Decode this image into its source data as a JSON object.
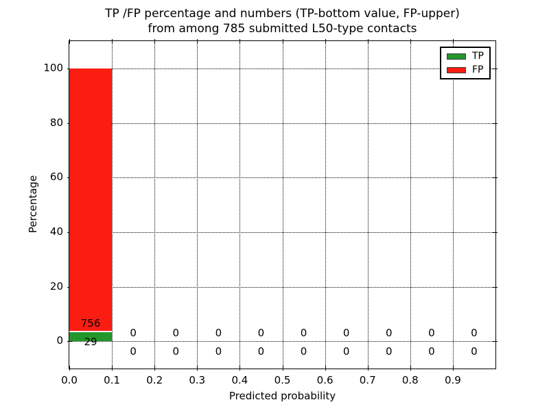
{
  "title": {
    "line1": "TP /FP percentage and numbers (TP-bottom value, FP-upper)",
    "line2": "from among 785 submitted L50-type contacts"
  },
  "axes": {
    "x_label": "Predicted probability",
    "y_label": "Percentage",
    "x_tick_labels": [
      "0.0",
      "0.1",
      "0.2",
      "0.3",
      "0.4",
      "0.5",
      "0.6",
      "0.7",
      "0.8",
      "0.9"
    ],
    "y_tick_labels": [
      "0",
      "20",
      "40",
      "60",
      "80",
      "100"
    ]
  },
  "legend": {
    "position": "upper right",
    "items": [
      {
        "label": "TP",
        "color": "#24972c"
      },
      {
        "label": "FP",
        "color": "#fb1d12"
      }
    ]
  },
  "chart_data": {
    "type": "bar",
    "stacked": true,
    "title": "TP /FP percentage and numbers (TP-bottom value, FP-upper) from among 785 submitted L50-type contacts",
    "xlabel": "Predicted probability",
    "ylabel": "Percentage",
    "total_contacts": 785,
    "bin_width": 0.1,
    "bin_centers": [
      0.05,
      0.15,
      0.25,
      0.35,
      0.45,
      0.55,
      0.65,
      0.75,
      0.85,
      0.95
    ],
    "series": [
      {
        "name": "TP",
        "color": "#24972c",
        "counts": [
          29,
          0,
          0,
          0,
          0,
          0,
          0,
          0,
          0,
          0
        ],
        "percentages": [
          3.69,
          0,
          0,
          0,
          0,
          0,
          0,
          0,
          0,
          0
        ]
      },
      {
        "name": "FP",
        "color": "#fb1d12",
        "counts": [
          756,
          0,
          0,
          0,
          0,
          0,
          0,
          0,
          0,
          0
        ],
        "percentages": [
          96.31,
          0,
          0,
          0,
          0,
          0,
          0,
          0,
          0,
          0
        ]
      }
    ],
    "x_ticks": [
      0.0,
      0.1,
      0.2,
      0.3,
      0.4,
      0.5,
      0.6,
      0.7,
      0.8,
      0.9
    ],
    "y_ticks": [
      0,
      20,
      40,
      60,
      80,
      100
    ],
    "xlim": [
      0.0,
      1.0
    ],
    "ylim": [
      -10,
      110
    ],
    "grid": {
      "visible": true,
      "style": "dotted",
      "color": "#000000"
    },
    "legend_position": "upper right",
    "bar_edge_color": "#ffffff"
  }
}
